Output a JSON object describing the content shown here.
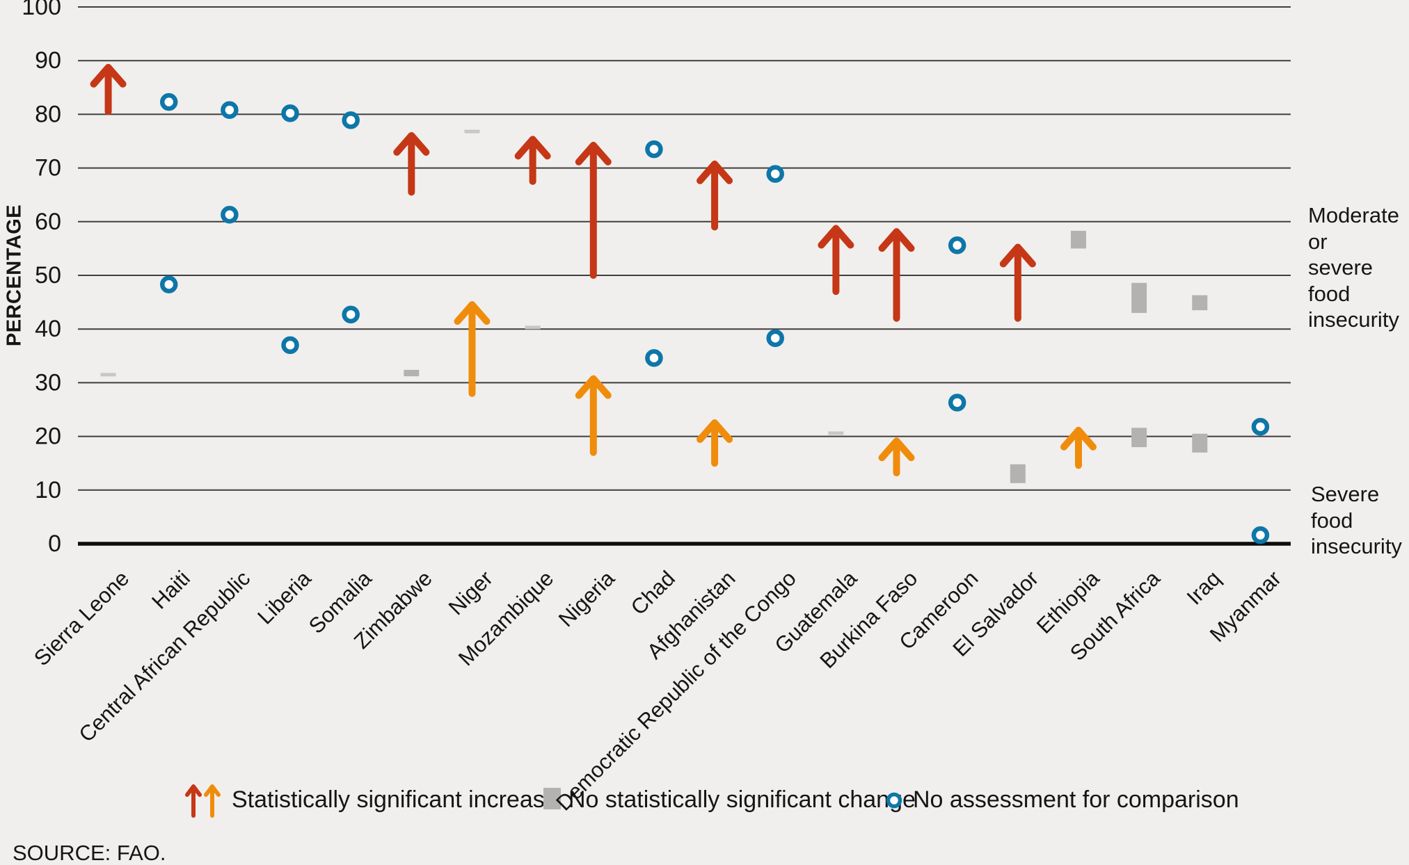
{
  "colors": {
    "red": "#c53716",
    "orange": "#f08c0c",
    "blue": "#0e76a8",
    "gray_box": "#b3b2b0",
    "gray_dash": "#c8c7c4",
    "background": "#f0efed",
    "gridline": "#403f3d",
    "axis": "#0d0d0d",
    "text": "#151515"
  },
  "y_axis": {
    "title": "PERCENTAGE",
    "ticks": [
      100,
      90,
      80,
      70,
      60,
      50,
      40,
      30,
      20,
      10,
      0
    ]
  },
  "right_labels": {
    "moderate_lines": [
      "Moderate or",
      "severe food",
      "insecurity"
    ],
    "severe_lines": [
      "Severe food",
      "insecurity"
    ]
  },
  "legend": {
    "increase": "Statistically significant increase",
    "no_change": "No statistically significant change",
    "no_assessment": "No assessment for comparison"
  },
  "source": "SOURCE: FAO.",
  "chart_data": {
    "type": "scatter",
    "title": "",
    "xlabel": "",
    "ylabel": "PERCENTAGE",
    "ylim": [
      0,
      100
    ],
    "yticks": [
      0,
      10,
      20,
      30,
      40,
      50,
      60,
      70,
      80,
      90,
      100
    ],
    "grid": "horizontal",
    "legend_position": "bottom",
    "groups": [
      "Moderate or severe food insecurity",
      "Severe food insecurity"
    ],
    "marker_semantics": {
      "arrow": "Statistically significant increase (red = moderate or severe, orange = severe)",
      "box": "No statistically significant change (range)",
      "dash": "No statistically significant change (narrow range)",
      "circle": "No assessment for comparison"
    },
    "countries": [
      {
        "name": "Sierra Leone",
        "moderate": {
          "marker": "arrow",
          "from": 80.5,
          "to": 89
        },
        "severe": {
          "marker": "dash",
          "value": 31.5
        }
      },
      {
        "name": "Haiti",
        "moderate": {
          "marker": "circle",
          "value": 82.3
        },
        "severe": {
          "marker": "circle",
          "value": 48.3
        }
      },
      {
        "name": "Central African Republic",
        "moderate": {
          "marker": "circle",
          "value": 80.8
        },
        "severe": {
          "marker": "circle",
          "value": 61.3
        }
      },
      {
        "name": "Liberia",
        "moderate": {
          "marker": "circle",
          "value": 80.2
        },
        "severe": {
          "marker": "circle",
          "value": 37
        }
      },
      {
        "name": "Somalia",
        "moderate": {
          "marker": "circle",
          "value": 78.9
        },
        "severe": {
          "marker": "circle",
          "value": 42.7
        }
      },
      {
        "name": "Zimbabwe",
        "moderate": {
          "marker": "arrow",
          "from": 65.5,
          "to": 76.3
        },
        "severe": {
          "marker": "box",
          "from": 31.2,
          "to": 32.4
        }
      },
      {
        "name": "Niger",
        "moderate": {
          "marker": "dash",
          "value": 76.8
        },
        "severe": {
          "marker": "arrow",
          "from": 28,
          "to": 44.8
        }
      },
      {
        "name": "Mozambique",
        "moderate": {
          "marker": "arrow",
          "from": 67.5,
          "to": 75.6
        },
        "severe": {
          "marker": "dash",
          "value": 40.3
        }
      },
      {
        "name": "Nigeria",
        "moderate": {
          "marker": "arrow",
          "from": 50,
          "to": 74.5
        },
        "severe": {
          "marker": "arrow",
          "from": 17,
          "to": 31
        }
      },
      {
        "name": "Chad",
        "moderate": {
          "marker": "circle",
          "value": 73.5
        },
        "severe": {
          "marker": "circle",
          "value": 34.6
        }
      },
      {
        "name": "Afghanistan",
        "moderate": {
          "marker": "arrow",
          "from": 59,
          "to": 71
        },
        "severe": {
          "marker": "arrow",
          "from": 15,
          "to": 22.8
        }
      },
      {
        "name": "Democratic Republic of the Congo",
        "moderate": {
          "marker": "circle",
          "value": 68.9
        },
        "severe": {
          "marker": "circle",
          "value": 38.3
        }
      },
      {
        "name": "Guatemala",
        "moderate": {
          "marker": "arrow",
          "from": 47,
          "to": 59
        },
        "severe": {
          "marker": "dash",
          "value": 20.6
        }
      },
      {
        "name": "Burkina Faso",
        "moderate": {
          "marker": "arrow",
          "from": 42,
          "to": 58.4
        },
        "severe": {
          "marker": "arrow",
          "from": 13.2,
          "to": 19.4
        }
      },
      {
        "name": "Cameroon",
        "moderate": {
          "marker": "circle",
          "value": 55.6
        },
        "severe": {
          "marker": "circle",
          "value": 26.3
        }
      },
      {
        "name": "El Salvador",
        "moderate": {
          "marker": "arrow",
          "from": 42,
          "to": 55.5
        },
        "severe": {
          "marker": "box",
          "from": 11.3,
          "to": 14.8
        }
      },
      {
        "name": "Ethiopia",
        "moderate": {
          "marker": "box",
          "from": 55,
          "to": 58.3
        },
        "severe": {
          "marker": "arrow",
          "from": 14.6,
          "to": 21.4
        }
      },
      {
        "name": "South Africa",
        "moderate": {
          "marker": "box",
          "from": 43,
          "to": 48.6
        },
        "severe": {
          "marker": "box",
          "from": 18,
          "to": 21.6
        }
      },
      {
        "name": "Iraq",
        "moderate": {
          "marker": "box",
          "from": 43.5,
          "to": 46.3
        },
        "severe": {
          "marker": "box",
          "from": 17,
          "to": 20.5
        }
      },
      {
        "name": "Myanmar",
        "moderate": {
          "marker": "circle",
          "value": 21.8
        },
        "severe": {
          "marker": "circle",
          "value": 1.6
        }
      }
    ]
  }
}
